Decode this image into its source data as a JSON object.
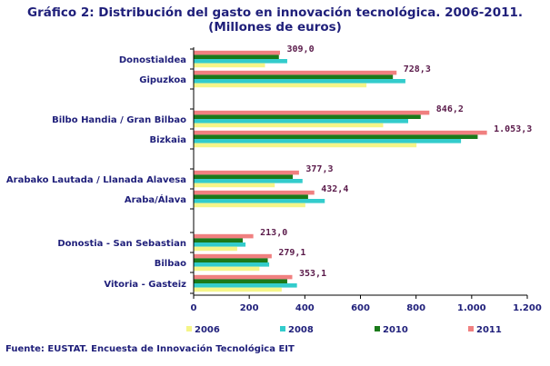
{
  "title_line1": "Gráfico 2: Distribución del gasto en innovación tecnológica. 2006-2011.",
  "title_line2": "(Millones de euros)",
  "source": "Fuente: EUSTAT. Encuesta de Innovación Tecnológica EIT",
  "colors": {
    "2006": "#f5f588",
    "2008": "#33cccc",
    "2010": "#1a7a1a",
    "2011": "#f08080"
  },
  "chart_data": {
    "type": "bar",
    "orientation": "horizontal",
    "xlim": [
      0,
      1200
    ],
    "ticks": [
      0,
      200,
      400,
      600,
      800,
      1000,
      1200
    ],
    "tick_labels": [
      "0",
      "200",
      "400",
      "600",
      "800",
      "1.000",
      "1.200"
    ],
    "categories": [
      "Donostialdea",
      "Gipuzkoa",
      "Bilbo Handia / Gran Bilbao",
      "Bizkaia",
      "Arabako Lautada / Llanada Alavesa",
      "Araba/Álava",
      "Donostia - San Sebastian",
      "Bilbao",
      "Vitoria - Gasteiz"
    ],
    "series": [
      {
        "name": "2006",
        "values": [
          255,
          620,
          680,
          800,
          290,
          400,
          155,
          235,
          315
        ]
      },
      {
        "name": "2008",
        "values": [
          335,
          760,
          770,
          960,
          390,
          470,
          185,
          270,
          370
        ]
      },
      {
        "name": "2010",
        "values": [
          305,
          715,
          815,
          1020,
          355,
          410,
          175,
          265,
          335
        ]
      },
      {
        "name": "2011",
        "values": [
          309.0,
          728.3,
          846.2,
          1053.3,
          377.3,
          432.4,
          213.0,
          279.1,
          353.1
        ]
      }
    ],
    "data_labels": [
      "309,0",
      "728,3",
      "846,2",
      "1.053,3",
      "377,3",
      "432,4",
      "213,0",
      "279,1",
      "353,1"
    ],
    "legend_position": "bottom"
  }
}
